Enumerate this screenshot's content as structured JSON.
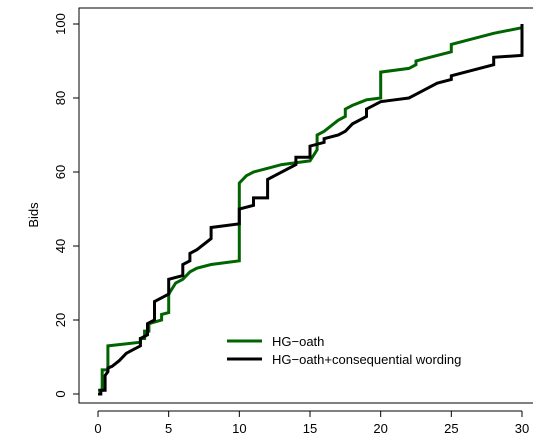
{
  "chart_data": {
    "type": "line",
    "title": "",
    "xlabel": "",
    "ylabel": "Bids",
    "xlim": [
      0,
      30
    ],
    "ylim": [
      0,
      100
    ],
    "x_ticks": [
      "0",
      "5",
      "10",
      "15",
      "20",
      "25",
      "30"
    ],
    "y_ticks": [
      "0",
      "20",
      "40",
      "60",
      "80",
      "100"
    ],
    "grid": false,
    "legend_position": "bottom-right",
    "series": [
      {
        "name": "HG−oath",
        "color": "#006400",
        "line_style": "step",
        "points": [
          [
            0,
            1
          ],
          [
            0.3,
            1
          ],
          [
            0.3,
            6.5
          ],
          [
            0.7,
            6.5
          ],
          [
            0.7,
            13
          ],
          [
            3,
            14
          ],
          [
            3,
            15
          ],
          [
            3.3,
            15
          ],
          [
            3.3,
            17
          ],
          [
            3.6,
            17
          ],
          [
            3.6,
            19
          ],
          [
            4.5,
            20
          ],
          [
            4.5,
            21.5
          ],
          [
            5,
            22
          ],
          [
            5,
            27
          ],
          [
            5.5,
            30
          ],
          [
            6,
            31
          ],
          [
            6.5,
            33
          ],
          [
            7,
            34
          ],
          [
            8,
            35
          ],
          [
            10,
            36
          ],
          [
            10,
            57
          ],
          [
            10.5,
            59
          ],
          [
            11,
            60
          ],
          [
            12,
            61
          ],
          [
            13,
            62
          ],
          [
            15,
            63
          ],
          [
            15.5,
            66
          ],
          [
            15.5,
            70
          ],
          [
            16,
            71
          ],
          [
            17,
            74
          ],
          [
            17.5,
            75
          ],
          [
            17.5,
            77
          ],
          [
            18,
            78
          ],
          [
            19,
            79.5
          ],
          [
            20,
            80
          ],
          [
            20,
            87
          ],
          [
            22,
            88
          ],
          [
            22.5,
            89
          ],
          [
            22.5,
            90
          ],
          [
            23,
            90.5
          ],
          [
            24,
            91.5
          ],
          [
            25,
            92.5
          ],
          [
            25,
            94.5
          ],
          [
            26,
            95.5
          ],
          [
            28,
            97.5
          ],
          [
            30,
            99
          ]
        ]
      },
      {
        "name": "HG−oath+consequential wording",
        "color": "#000000",
        "line_style": "step",
        "points": [
          [
            0,
            0
          ],
          [
            0.2,
            0
          ],
          [
            0.2,
            1
          ],
          [
            0.5,
            1
          ],
          [
            0.5,
            5
          ],
          [
            0.7,
            6
          ],
          [
            0.7,
            7
          ],
          [
            1,
            7.5
          ],
          [
            1.5,
            9
          ],
          [
            2,
            11
          ],
          [
            2.5,
            12
          ],
          [
            3,
            13
          ],
          [
            3,
            15
          ],
          [
            3.5,
            16
          ],
          [
            3.5,
            19
          ],
          [
            4,
            20
          ],
          [
            4,
            25
          ],
          [
            4.5,
            26
          ],
          [
            5,
            27
          ],
          [
            5,
            31
          ],
          [
            6,
            32
          ],
          [
            6,
            35
          ],
          [
            6.5,
            36
          ],
          [
            6.5,
            38
          ],
          [
            7,
            39
          ],
          [
            8,
            42
          ],
          [
            8,
            45
          ],
          [
            10,
            46
          ],
          [
            10,
            50
          ],
          [
            11,
            51
          ],
          [
            11,
            53
          ],
          [
            12,
            53
          ],
          [
            12,
            58
          ],
          [
            14,
            62
          ],
          [
            14,
            64
          ],
          [
            15,
            64
          ],
          [
            15,
            67
          ],
          [
            16,
            68
          ],
          [
            16,
            69
          ],
          [
            17,
            70
          ],
          [
            17.5,
            71
          ],
          [
            18,
            73
          ],
          [
            19,
            75
          ],
          [
            19,
            77
          ],
          [
            20,
            79
          ],
          [
            21,
            79.5
          ],
          [
            22,
            80
          ],
          [
            22.5,
            81
          ],
          [
            23,
            82
          ],
          [
            24,
            84
          ],
          [
            25,
            85
          ],
          [
            25,
            86
          ],
          [
            26,
            87
          ],
          [
            28,
            89
          ],
          [
            28,
            91
          ],
          [
            30,
            91.5
          ],
          [
            30,
            100
          ]
        ]
      }
    ]
  }
}
